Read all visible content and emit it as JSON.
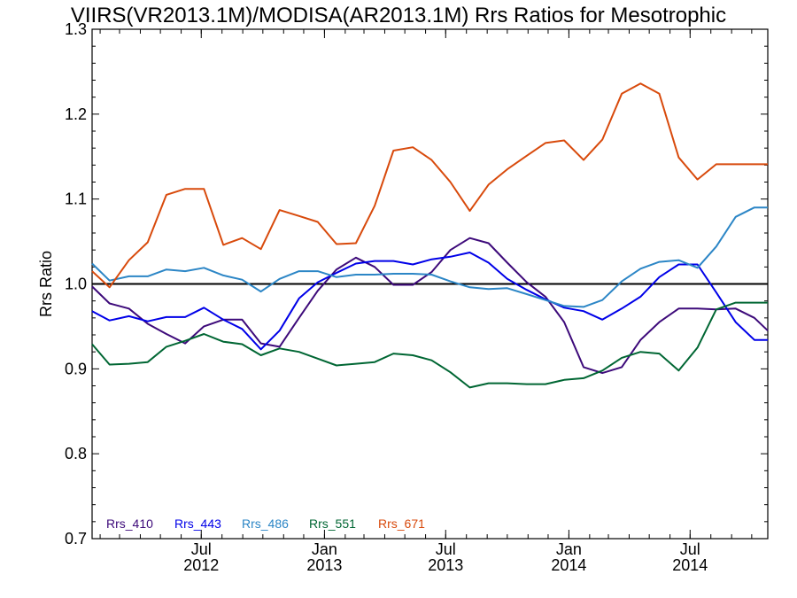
{
  "chart_data": {
    "type": "line",
    "title": "VIIRS(VR2013.1M)/MODISA(AR2013.1M)  Rrs Ratios for Mesotrophic",
    "ylabel": "Rrs Ratio",
    "xlabel": "",
    "ylim": [
      0.7,
      1.3
    ],
    "xlim": [
      "2012-01-20",
      "2014-10-25"
    ],
    "yticks": [
      "0.7",
      "0.8",
      "0.9",
      "1.0",
      "1.1",
      "1.2",
      "1.3"
    ],
    "xticks": [
      {
        "date": "2012-07-01",
        "line1": "Jul",
        "line2": "2012"
      },
      {
        "date": "2013-01-01",
        "line1": "Jan",
        "line2": "2013"
      },
      {
        "date": "2013-07-01",
        "line1": "Jul",
        "line2": "2013"
      },
      {
        "date": "2014-01-01",
        "line1": "Jan",
        "line2": "2014"
      },
      {
        "date": "2014-07-01",
        "line1": "Jul",
        "line2": "2014"
      }
    ],
    "reference_line": 1.0,
    "x": [
      "2012-01-20",
      "2012-02-15",
      "2012-03-15",
      "2012-04-12",
      "2012-05-10",
      "2012-06-07",
      "2012-07-05",
      "2012-08-03",
      "2012-08-31",
      "2012-09-28",
      "2012-10-26",
      "2012-11-24",
      "2012-12-22",
      "2013-01-19",
      "2013-02-17",
      "2013-03-17",
      "2013-04-14",
      "2013-05-13",
      "2013-06-10",
      "2013-07-08",
      "2013-08-06",
      "2013-09-03",
      "2013-10-01",
      "2013-10-30",
      "2013-11-27",
      "2013-12-25",
      "2014-01-23",
      "2014-02-20",
      "2014-03-21",
      "2014-04-18",
      "2014-05-16",
      "2014-06-14",
      "2014-07-12",
      "2014-08-09",
      "2014-09-07",
      "2014-10-05",
      "2014-10-25"
    ],
    "series": [
      {
        "name": "Rrs_410",
        "color": "#3d0a7a",
        "values": [
          0.997,
          0.977,
          0.971,
          0.953,
          0.941,
          0.93,
          0.95,
          0.958,
          0.958,
          0.93,
          0.926,
          0.96,
          0.992,
          1.017,
          1.031,
          1.02,
          0.999,
          0.999,
          1.014,
          1.04,
          1.054,
          1.048,
          1.025,
          1.002,
          0.985,
          0.955,
          0.902,
          0.895,
          0.902,
          0.934,
          0.955,
          0.971,
          0.971,
          0.97,
          0.971,
          0.96,
          0.945
        ]
      },
      {
        "name": "Rrs_443",
        "color": "#0000e8",
        "values": [
          0.968,
          0.957,
          0.962,
          0.956,
          0.961,
          0.961,
          0.972,
          0.958,
          0.947,
          0.923,
          0.945,
          0.983,
          1.002,
          1.013,
          1.024,
          1.027,
          1.027,
          1.023,
          1.029,
          1.032,
          1.037,
          1.025,
          1.006,
          0.993,
          0.982,
          0.972,
          0.968,
          0.958,
          0.971,
          0.985,
          1.008,
          1.023,
          1.023,
          0.99,
          0.955,
          0.934,
          0.934
        ]
      },
      {
        "name": "Rrs_486",
        "color": "#2c86c6",
        "values": [
          1.024,
          1.004,
          1.009,
          1.009,
          1.017,
          1.015,
          1.019,
          1.01,
          1.005,
          0.991,
          1.006,
          1.015,
          1.015,
          1.008,
          1.011,
          1.011,
          1.012,
          1.012,
          1.011,
          1.003,
          0.996,
          0.994,
          0.995,
          0.988,
          0.981,
          0.974,
          0.973,
          0.981,
          1.003,
          1.018,
          1.026,
          1.028,
          1.019,
          1.044,
          1.079,
          1.09,
          1.09
        ]
      },
      {
        "name": "Rrs_551",
        "color": "#006633",
        "values": [
          0.929,
          0.905,
          0.906,
          0.908,
          0.926,
          0.933,
          0.941,
          0.932,
          0.929,
          0.916,
          0.924,
          0.92,
          0.912,
          0.904,
          0.906,
          0.908,
          0.918,
          0.916,
          0.91,
          0.896,
          0.878,
          0.883,
          0.883,
          0.882,
          0.882,
          0.887,
          0.889,
          0.898,
          0.913,
          0.92,
          0.918,
          0.898,
          0.925,
          0.97,
          0.978,
          0.978,
          0.978
        ]
      },
      {
        "name": "Rrs_671",
        "color": "#d84a0c",
        "values": [
          1.015,
          0.996,
          1.028,
          1.049,
          1.105,
          1.112,
          1.112,
          1.046,
          1.054,
          1.041,
          1.087,
          1.08,
          1.073,
          1.047,
          1.048,
          1.092,
          1.157,
          1.161,
          1.146,
          1.12,
          1.086,
          1.117,
          1.135,
          1.151,
          1.166,
          1.169,
          1.146,
          1.17,
          1.224,
          1.236,
          1.224,
          1.149,
          1.123,
          1.141,
          1.141,
          1.141,
          1.141
        ]
      }
    ],
    "legend_position": "bottom-left",
    "grid": false
  }
}
